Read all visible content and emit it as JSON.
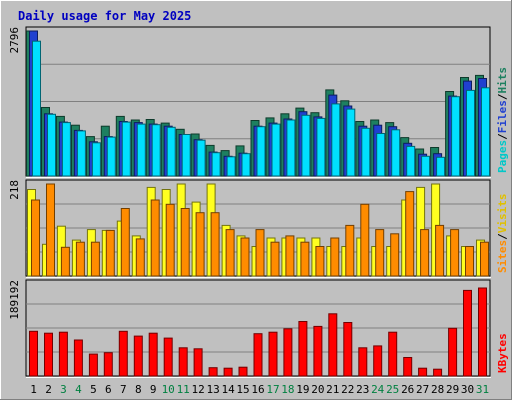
{
  "chart_data": [
    {
      "type": "bar",
      "title": "Daily usage for May 2025",
      "categories": [
        "1",
        "2",
        "3",
        "4",
        "5",
        "6",
        "7",
        "8",
        "9",
        "10",
        "11",
        "12",
        "13",
        "14",
        "15",
        "16",
        "17",
        "18",
        "19",
        "20",
        "21",
        "22",
        "23",
        "24",
        "25",
        "26",
        "27",
        "28",
        "29",
        "30",
        "31"
      ],
      "weekend_days": [
        "3",
        "4",
        "10",
        "11",
        "17",
        "18",
        "24",
        "25",
        "31"
      ],
      "ymax_label": "2796",
      "ymax": 2796,
      "series": [
        {
          "name": "Hits",
          "color": "#1E8060",
          "values": [
            2796,
            1320,
            1150,
            980,
            760,
            960,
            1150,
            1080,
            1090,
            1020,
            900,
            810,
            590,
            490,
            580,
            1070,
            1120,
            1200,
            1310,
            1220,
            1660,
            1450,
            1050,
            1080,
            1030,
            740,
            520,
            550,
            1630,
            1900,
            1940
          ]
        },
        {
          "name": "Files",
          "color": "#2040D0",
          "values": [
            2796,
            1200,
            1040,
            880,
            660,
            760,
            1050,
            1030,
            1000,
            960,
            800,
            700,
            460,
            380,
            440,
            960,
            1020,
            1100,
            1240,
            1140,
            1560,
            1350,
            960,
            980,
            950,
            630,
            420,
            430,
            1540,
            1830,
            1880
          ]
        },
        {
          "name": "Pages",
          "color": "#00E0FF",
          "values": [
            2600,
            1190,
            1030,
            870,
            640,
            750,
            1040,
            1000,
            990,
            940,
            800,
            690,
            450,
            370,
            430,
            950,
            1000,
            1080,
            1170,
            1110,
            1390,
            1290,
            920,
            820,
            890,
            570,
            380,
            360,
            1530,
            1650,
            1700
          ]
        }
      ],
      "legend": [
        "Pages",
        "/",
        "Files",
        "/",
        "Hits"
      ],
      "legend_colors": [
        "#00C8C8",
        "#000000",
        "#2040D0",
        "#000000",
        "#1E8060"
      ]
    },
    {
      "type": "bar",
      "ymax_label": "218",
      "ymax": 218,
      "series": [
        {
          "name": "Visits",
          "color": "#FFFF20",
          "values": [
            205,
            75,
            118,
            85,
            110,
            108,
            130,
            95,
            210,
            205,
            218,
            175,
            218,
            120,
            95,
            70,
            90,
            90,
            90,
            90,
            70,
            70,
            90,
            70,
            70,
            180,
            210,
            218,
            95,
            70,
            85
          ]
        },
        {
          "name": "Sites",
          "color": "#FF8C00",
          "values": [
            180,
            218,
            68,
            80,
            80,
            108,
            160,
            88,
            180,
            170,
            160,
            150,
            150,
            110,
            90,
            110,
            80,
            95,
            80,
            70,
            90,
            120,
            170,
            110,
            100,
            200,
            110,
            120,
            110,
            70,
            80
          ]
        }
      ],
      "legend": [
        "Sites",
        "/",
        "Visits"
      ],
      "legend_colors": [
        "#FF8C00",
        "#000000",
        "#E0C000"
      ]
    },
    {
      "type": "bar",
      "ymax_label": "189192",
      "ymax": 189192,
      "series": [
        {
          "name": "KBytes",
          "color": "#FF0000",
          "values": [
            92000,
            88000,
            90000,
            74000,
            45000,
            48000,
            92000,
            82000,
            88000,
            78000,
            58000,
            56000,
            17000,
            16000,
            18000,
            87000,
            90000,
            97000,
            112000,
            102000,
            128000,
            110000,
            58000,
            62000,
            90000,
            38000,
            16000,
            14000,
            98000,
            176000,
            181000
          ]
        }
      ],
      "legend": [
        "KBytes"
      ],
      "legend_colors": [
        "#FF0000"
      ]
    }
  ]
}
